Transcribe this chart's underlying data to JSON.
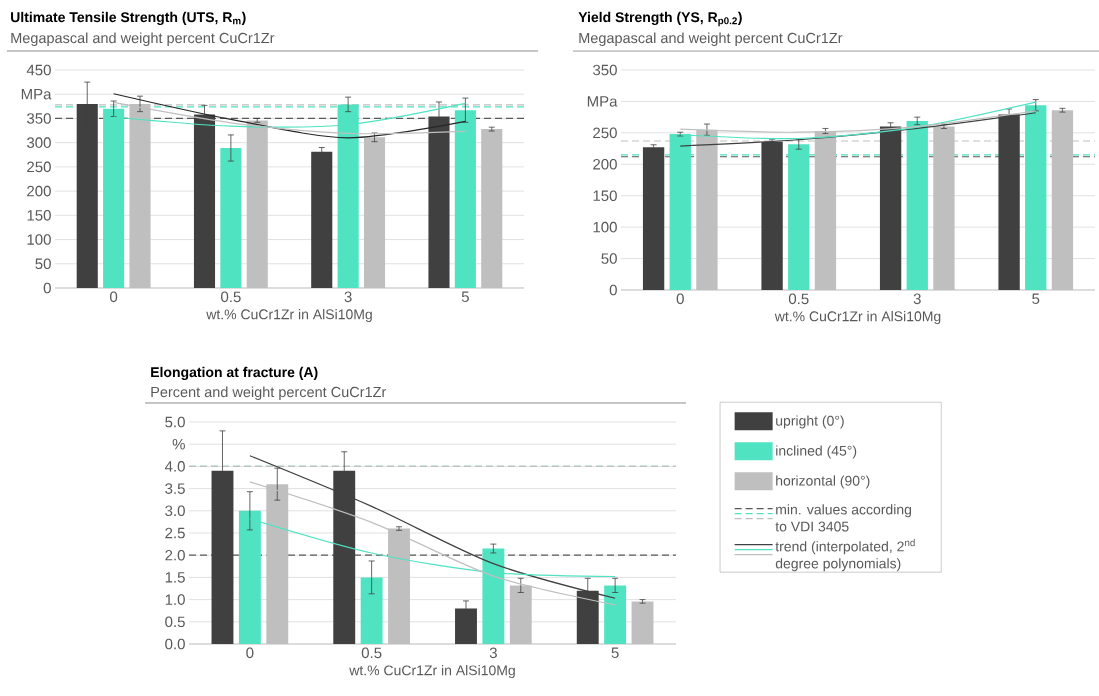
{
  "chart_data": [
    {
      "type": "bar",
      "title": "Ultimate Tensile Strength (UTS, R$_{m}$)",
      "subtitle": "Megapascal and weight percent CuCr1Zr",
      "xlabel": "wt.% CuCr1Zr in AlSi10Mg",
      "categories": [
        "0",
        "0.5",
        "3",
        "5"
      ],
      "ylim": [
        0,
        450
      ],
      "yticks": [
        0,
        50,
        100,
        150,
        200,
        250,
        300,
        350,
        {
          "value": 400,
          "label": "MPa"
        },
        450
      ],
      "grid": "y",
      "series": [
        {
          "color": "#404040",
          "values": [
            380,
            358,
            281,
            354
          ],
          "errors": [
            45,
            19,
            9,
            30
          ]
        },
        {
          "color": "#50e3c2",
          "values": [
            370,
            289,
            379,
            367
          ],
          "errors": [
            16,
            27,
            15,
            25
          ]
        },
        {
          "color": "#bfbfbf",
          "values": [
            380,
            346,
            311,
            328
          ],
          "errors": [
            16,
            4,
            9,
            4
          ]
        },
        {
          "type": "line",
          "color": "#262626",
          "values": [
            401,
            348,
            310,
            344
          ]
        },
        {
          "type": "line",
          "color": "#50e3c2",
          "values": [
            353,
            334,
            337,
            381
          ]
        },
        {
          "type": "line",
          "color": "#bfbfbf",
          "values": [
            383,
            341,
            319,
            324
          ]
        }
      ],
      "ref_lines": [
        {
          "axis": "y",
          "value": 350,
          "color": "#595959",
          "line_style": "dashed"
        },
        {
          "axis": "y",
          "value": 374,
          "color": "#50e3c2",
          "line_style": "dashed"
        },
        {
          "axis": "y",
          "value": 378,
          "color": "#bfbfbf",
          "line_style": "dashed"
        }
      ]
    },
    {
      "type": "bar",
      "title": "Yield Strength (YS, R$_{p0.2}$)",
      "subtitle": "Megapascal and weight percent CuCr1Zr",
      "xlabel": "wt.% CuCr1Zr in AlSi10Mg",
      "categories": [
        "0",
        "0.5",
        "3",
        "5"
      ],
      "ylim": [
        0,
        350
      ],
      "yticks": [
        0,
        50,
        100,
        150,
        200,
        250,
        {
          "value": 300,
          "label": "MPa"
        },
        350
      ],
      "grid": "y",
      "series": [
        {
          "color": "#404040",
          "values": [
            227,
            236,
            260,
            279
          ],
          "errors": [
            4,
            3,
            6,
            9
          ]
        },
        {
          "color": "#50e3c2",
          "values": [
            248,
            232,
            269,
            294
          ],
          "errors": [
            3,
            8,
            6,
            9
          ]
        },
        {
          "color": "#bfbfbf",
          "values": [
            255,
            253,
            260,
            286
          ],
          "errors": [
            9,
            4,
            3,
            3
          ]
        },
        {
          "type": "line",
          "color": "#404040",
          "values": [
            229,
            239,
            257,
            282
          ]
        },
        {
          "type": "line",
          "color": "#50e3c2",
          "values": [
            247,
            241,
            259,
            299
          ]
        },
        {
          "type": "line",
          "color": "#bfbfbf",
          "values": [
            256,
            251,
            260,
            285
          ]
        }
      ],
      "ref_lines": [
        {
          "axis": "y",
          "value": 212,
          "color": "#595959",
          "line_style": "dashed"
        },
        {
          "axis": "y",
          "value": 215,
          "color": "#50e3c2",
          "line_style": "dashed"
        },
        {
          "axis": "y",
          "value": 237,
          "color": "#bfbfbf",
          "line_style": "dashed"
        }
      ]
    },
    {
      "type": "bar",
      "title": "Elongation at fracture (A)",
      "subtitle": "Percent and weight percent CuCr1Zr",
      "xlabel": "wt.% CuCr1Zr in AlSi10Mg",
      "categories": [
        "0",
        "0.5",
        "3",
        "5"
      ],
      "ylim": [
        0,
        5
      ],
      "yticks": [
        {
          "value": 0,
          "label": "0.0"
        },
        {
          "value": 0.5,
          "label": "0.5"
        },
        {
          "value": 1,
          "label": "1.0"
        },
        {
          "value": 1.5,
          "label": "1.5"
        },
        {
          "value": 2,
          "label": "2.0"
        },
        {
          "value": 2.5,
          "label": "2.5"
        },
        {
          "value": 3,
          "label": "3.0"
        },
        {
          "value": 3.5,
          "label": "3.5"
        },
        {
          "value": 4,
          "label": "4.0"
        },
        {
          "value": 4.5,
          "label": "%"
        },
        {
          "value": 5,
          "label": "5.0"
        }
      ],
      "grid": "y",
      "legend": "right",
      "series": [
        {
          "name": "upright (0°)",
          "color": "#404040",
          "values": [
            3.9,
            3.9,
            0.8,
            1.2
          ],
          "errors": [
            0.9,
            0.43,
            0.17,
            0.28
          ]
        },
        {
          "name": "inclined (45°)",
          "color": "#50e3c2",
          "values": [
            3.0,
            1.5,
            2.15,
            1.32
          ],
          "errors": [
            0.43,
            0.37,
            0.1,
            0.16
          ]
        },
        {
          "name": "horizontal (90°)",
          "color": "#bfbfbf",
          "values": [
            3.6,
            2.6,
            1.32,
            0.96
          ],
          "errors": [
            0.36,
            0.04,
            0.16,
            0.04
          ]
        },
        {
          "name": "trend (interpolated, 2$^{nd}$ degree polynomials)",
          "type": "line",
          "color": "#404040",
          "values": [
            4.24,
            3.1,
            1.81,
            1.03
          ]
        },
        {
          "type": "line",
          "color": "#50e3c2",
          "values": [
            2.82,
            2.05,
            1.61,
            1.52
          ]
        },
        {
          "type": "line",
          "color": "#bfbfbf",
          "values": [
            3.65,
            2.74,
            1.53,
            0.88
          ]
        }
      ],
      "ref_lines": [
        {
          "axis": "y",
          "value": 2,
          "color": "#595959",
          "line_style": "dashed",
          "label": "min. values according to VDI 3405"
        },
        {
          "axis": "y",
          "value": 4,
          "color": "#50e3c2",
          "line_style": "dashed"
        },
        {
          "axis": "y",
          "value": 4,
          "color": "#bfbfbf",
          "line_style": "dashed"
        }
      ]
    }
  ]
}
